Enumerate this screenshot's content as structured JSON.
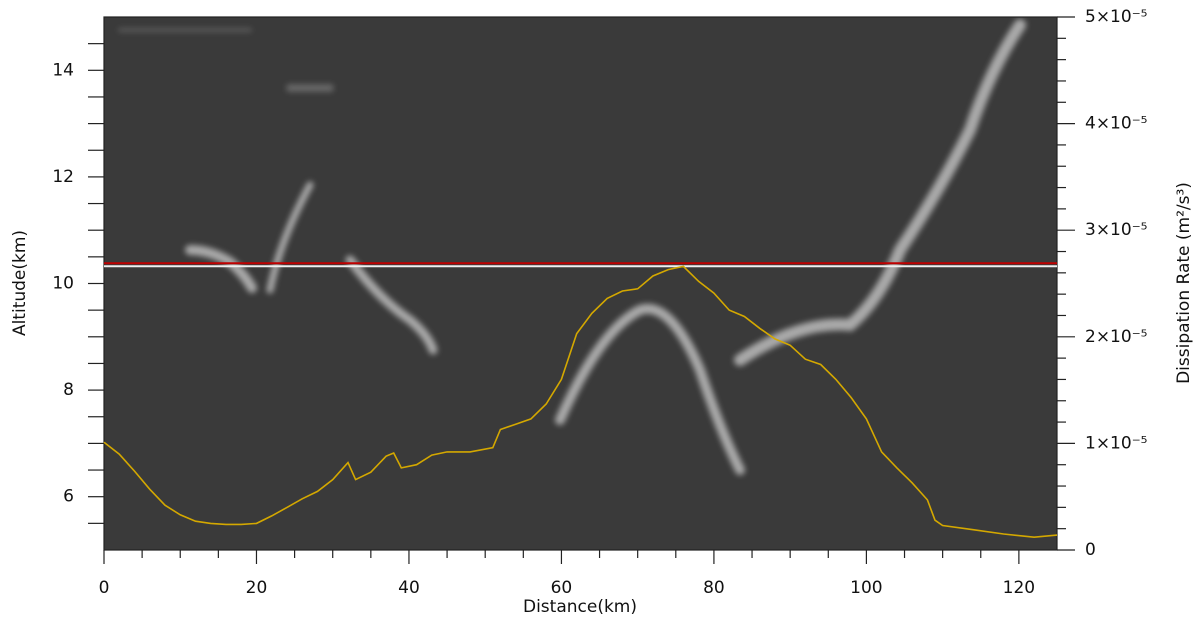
{
  "chart_data": {
    "type": "line",
    "xlabel": "Distance(km)",
    "ylabel": "Altitude(km)",
    "y2label": "Dissipation Rate (m²/s³)",
    "xlim": [
      0,
      125
    ],
    "xticks": [
      0,
      20,
      40,
      60,
      80,
      100,
      120
    ],
    "xminor": [
      5,
      10,
      15,
      25,
      30,
      35,
      45,
      50,
      55,
      65,
      70,
      75,
      85,
      90,
      95,
      105,
      110,
      115
    ],
    "ylim": [
      5,
      15
    ],
    "yticks": [
      6,
      8,
      10,
      12,
      14
    ],
    "yminor": [
      5.5,
      6.5,
      7,
      7.5,
      8.5,
      9,
      9.5,
      10.5,
      11,
      11.5,
      12.5,
      13,
      13.5,
      14.5
    ],
    "y2lim": [
      0,
      5e-05
    ],
    "y2ticks": [
      0,
      {
        "value": 1e-05,
        "label": "1×10⁻⁵"
      },
      {
        "value": 2e-05,
        "label": "2×10⁻⁵"
      },
      {
        "value": 3e-05,
        "label": "3×10⁻⁵"
      },
      {
        "value": 4e-05,
        "label": "4×10⁻⁵"
      },
      {
        "value": 5e-05,
        "label": "5×10⁻⁵"
      }
    ],
    "y2minor": [
      2e-06,
      4e-06,
      6e-06,
      8e-06,
      1.2e-05,
      1.4e-05,
      1.6e-05,
      1.8e-05,
      2.2e-05,
      2.4e-05,
      2.6e-05,
      2.8e-05,
      3.2e-05,
      3.4e-05,
      3.6e-05,
      3.8e-05,
      4.2e-05,
      4.4e-05,
      4.6e-05,
      4.8e-05
    ],
    "reference_line": {
      "y": 10.38,
      "color": "#c00000"
    },
    "background": "#3a3a3a",
    "x": [
      0,
      2,
      4,
      6,
      8,
      10,
      12,
      14,
      16,
      18,
      20,
      22,
      24,
      26,
      28,
      30,
      32,
      33,
      35,
      37,
      38,
      39,
      41,
      43,
      45,
      48,
      51,
      52,
      54,
      56,
      58,
      60,
      62,
      64,
      66,
      68,
      70,
      72,
      74,
      76,
      78,
      80,
      82,
      84,
      86,
      88,
      90,
      92,
      94,
      96,
      98,
      100,
      102,
      104,
      106,
      108,
      109,
      110,
      114,
      118,
      122,
      125
    ],
    "series": [
      {
        "color": "#d4a800",
        "axis": "y2",
        "values": [
          1.01e-05,
          9e-06,
          7.4e-06,
          5.7e-06,
          4.2e-06,
          3.3e-06,
          2.7e-06,
          2.5e-06,
          2.4e-06,
          2.4e-06,
          2.5e-06,
          3.2e-06,
          4e-06,
          4.8e-06,
          5.5e-06,
          6.6e-06,
          8.2e-06,
          6.6e-06,
          7.3e-06,
          8.8e-06,
          9.1e-06,
          7.7e-06,
          8e-06,
          8.9e-06,
          9.2e-06,
          9.2e-06,
          9.6e-06,
          1.13e-05,
          1.18e-05,
          1.23e-05,
          1.37e-05,
          1.6e-05,
          2.03e-05,
          2.22e-05,
          2.36e-05,
          2.43e-05,
          2.45e-05,
          2.57e-05,
          2.63e-05,
          2.66e-05,
          2.52e-05,
          2.41e-05,
          2.25e-05,
          2.19e-05,
          2.08e-05,
          1.98e-05,
          1.92e-05,
          1.79e-05,
          1.74e-05,
          1.6e-05,
          1.43e-05,
          1.23e-05,
          9.2e-06,
          7.7e-06,
          6.3e-06,
          4.7e-06,
          2.8e-06,
          2.3e-06,
          1.9e-06,
          1.5e-06,
          1.2e-06,
          1.4e-06
        ]
      }
    ]
  }
}
